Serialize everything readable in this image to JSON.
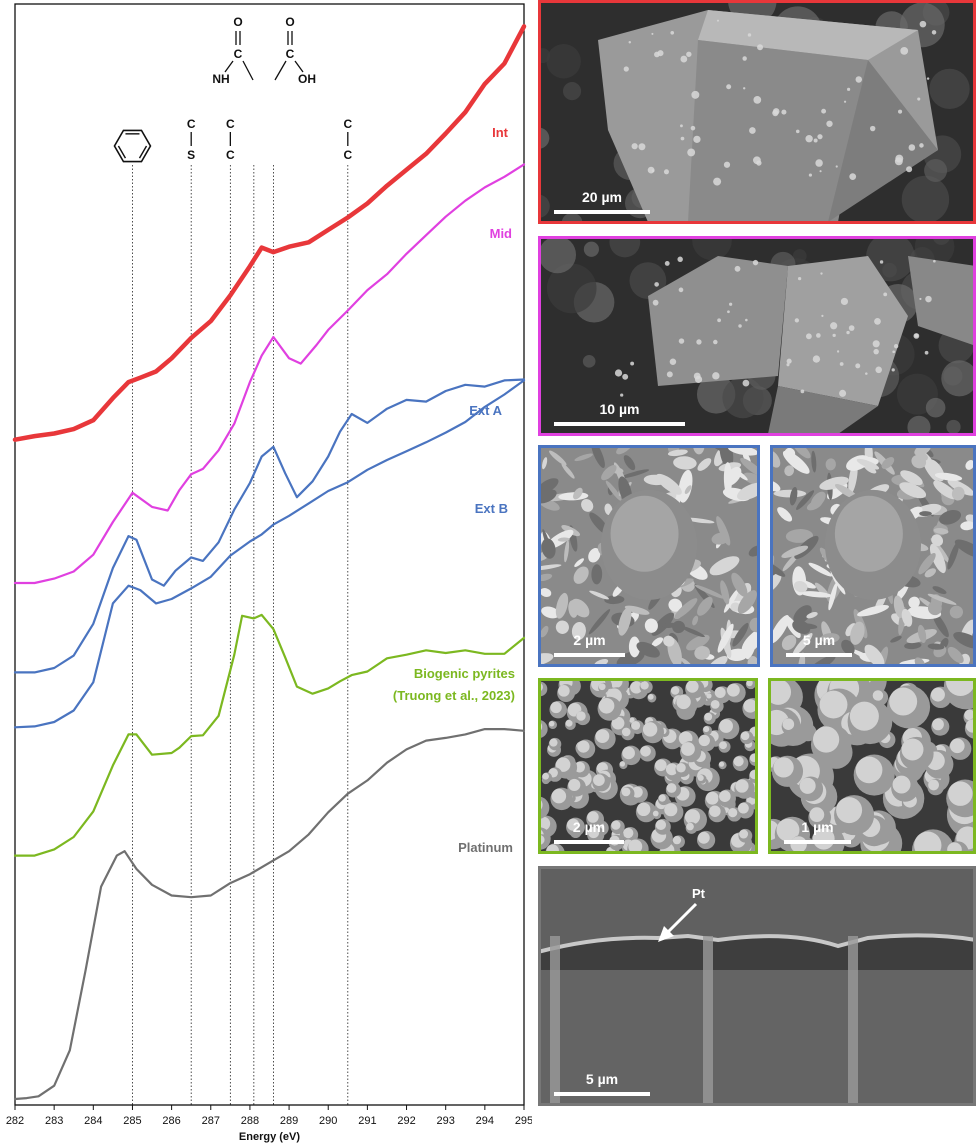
{
  "chart_data": {
    "type": "line",
    "xlabel": "Energy (eV)",
    "xlim": [
      282,
      295
    ],
    "x_ticks": [
      "282",
      "283",
      "284",
      "285",
      "286",
      "287",
      "288",
      "289",
      "290",
      "291",
      "292",
      "293",
      "294",
      "295"
    ],
    "ylabel": "",
    "grid": false,
    "reference_lines": [
      {
        "x": 285.0,
        "label": "aromatic ring"
      },
      {
        "x": 286.5,
        "label_lines": [
          "C",
          "S"
        ]
      },
      {
        "x": 287.5,
        "label_lines": [
          "C",
          "C"
        ]
      },
      {
        "x": 288.1,
        "label_lines": [
          "O",
          "C",
          "NH"
        ]
      },
      {
        "x": 288.6,
        "label_lines": [
          "O",
          "C",
          "OH"
        ]
      },
      {
        "x": 290.5,
        "label_lines": [
          "C",
          "C"
        ]
      }
    ],
    "series": [
      {
        "name": "Int",
        "label_lines": [
          "Int"
        ],
        "color": "#e8373a",
        "x": [
          282,
          282.5,
          283,
          283.5,
          284,
          284.5,
          284.9,
          285.2,
          285.6,
          286,
          286.5,
          287,
          287.5,
          288,
          288.3,
          288.6,
          289,
          289.5,
          290,
          290.5,
          291,
          291.5,
          292,
          292.5,
          293,
          293.5,
          294,
          294.5,
          295
        ],
        "y": [
          0.345,
          0.349,
          0.352,
          0.357,
          0.367,
          0.392,
          0.41,
          0.415,
          0.422,
          0.437,
          0.46,
          0.479,
          0.508,
          0.541,
          0.562,
          0.557,
          0.563,
          0.568,
          0.582,
          0.596,
          0.612,
          0.632,
          0.65,
          0.668,
          0.691,
          0.715,
          0.747,
          0.77,
          0.812
        ]
      },
      {
        "name": "Mid",
        "label_lines": [
          "Mid"
        ],
        "color": "#e040e0",
        "x": [
          282,
          282.5,
          283,
          283.5,
          284,
          284.5,
          285,
          285.5,
          285.9,
          286.2,
          286.5,
          286.8,
          287.2,
          287.6,
          288,
          288.3,
          288.6,
          289,
          289.3,
          289.7,
          290,
          290.5,
          291,
          291.5,
          292,
          292.5,
          293,
          293.5,
          294,
          294.5,
          295
        ],
        "y": [
          0.183,
          0.183,
          0.188,
          0.196,
          0.215,
          0.252,
          0.285,
          0.269,
          0.265,
          0.288,
          0.306,
          0.312,
          0.333,
          0.363,
          0.41,
          0.44,
          0.461,
          0.437,
          0.431,
          0.452,
          0.469,
          0.491,
          0.514,
          0.532,
          0.555,
          0.576,
          0.597,
          0.615,
          0.63,
          0.642,
          0.656
        ]
      },
      {
        "name": "Ext A",
        "label_lines": [
          "Ext A"
        ],
        "color": "#4a74c0",
        "x": [
          282,
          282.5,
          283,
          283.5,
          284,
          284.5,
          284.9,
          285.1,
          285.5,
          285.8,
          286.1,
          286.5,
          286.8,
          287.2,
          287.6,
          288,
          288.3,
          288.6,
          288.9,
          289.2,
          289.6,
          290,
          290.3,
          290.6,
          291,
          291.5,
          292,
          292.5,
          293,
          293.5,
          294,
          294.5,
          295
        ],
        "y": [
          0.082,
          0.082,
          0.087,
          0.101,
          0.137,
          0.2,
          0.236,
          0.232,
          0.187,
          0.18,
          0.197,
          0.212,
          0.208,
          0.229,
          0.266,
          0.296,
          0.326,
          0.337,
          0.307,
          0.28,
          0.298,
          0.326,
          0.354,
          0.374,
          0.364,
          0.38,
          0.39,
          0.388,
          0.4,
          0.407,
          0.405,
          0.412,
          0.413
        ]
      },
      {
        "name": "Ext B",
        "label_lines": [
          "Ext B"
        ],
        "color": "#4a74c0",
        "x": [
          282,
          282.5,
          283,
          283.5,
          284,
          284.5,
          284.9,
          285.2,
          285.6,
          286,
          286.5,
          287,
          287.5,
          288,
          288.3,
          288.6,
          289,
          289.5,
          290,
          290.5,
          291,
          291.5,
          292,
          292.5,
          293,
          293.5,
          294,
          294.5,
          295
        ],
        "y": [
          0.02,
          0.021,
          0.026,
          0.039,
          0.071,
          0.16,
          0.18,
          0.175,
          0.16,
          0.165,
          0.177,
          0.19,
          0.214,
          0.23,
          0.238,
          0.249,
          0.259,
          0.273,
          0.287,
          0.297,
          0.311,
          0.322,
          0.332,
          0.342,
          0.353,
          0.365,
          0.382,
          0.396,
          0.412
        ]
      },
      {
        "name": "Biogenic pyrites (Truong et al., 2023)",
        "label_lines": [
          "Biogenic pyrites",
          "(Truong et al., 2023)"
        ],
        "color": "#7cb820",
        "x": [
          282,
          282.5,
          283,
          283.5,
          284,
          284.5,
          284.9,
          285.1,
          285.5,
          286,
          286.2,
          286.5,
          286.8,
          287.2,
          287.6,
          287.8,
          288.1,
          288.3,
          288.6,
          288.9,
          289.2,
          289.6,
          290,
          290.3,
          290.6,
          291,
          291.5,
          292,
          292.5,
          293,
          293.5,
          294,
          294.5,
          295
        ],
        "y": [
          -0.125,
          -0.125,
          -0.118,
          -0.104,
          -0.075,
          -0.023,
          0.012,
          0.012,
          -0.011,
          -0.009,
          -0.003,
          0.01,
          0.011,
          0.033,
          0.102,
          0.146,
          0.143,
          0.147,
          0.131,
          0.099,
          0.066,
          0.058,
          0.064,
          0.072,
          0.079,
          0.083,
          0.098,
          0.102,
          0.107,
          0.104,
          0.107,
          0.103,
          0.103,
          0.121
        ]
      },
      {
        "name": "Platinum",
        "label_lines": [
          "Platinum"
        ],
        "color": "#707070",
        "x": [
          282,
          282.3,
          282.6,
          283,
          283.4,
          283.8,
          284.2,
          284.6,
          284.8,
          285.1,
          285.5,
          286,
          286.5,
          287,
          287.5,
          288,
          288.5,
          289,
          289.5,
          290,
          290.5,
          291,
          291.5,
          292,
          292.5,
          293,
          293.5,
          294,
          294.5,
          295
        ],
        "y": [
          -0.4,
          -0.399,
          -0.397,
          -0.385,
          -0.345,
          -0.255,
          -0.16,
          -0.125,
          -0.12,
          -0.14,
          -0.158,
          -0.17,
          -0.172,
          -0.17,
          -0.156,
          -0.146,
          -0.133,
          -0.12,
          -0.101,
          -0.076,
          -0.055,
          -0.04,
          -0.02,
          -0.005,
          0.005,
          0.008,
          0.012,
          0.018,
          0.018,
          0.016
        ]
      }
    ]
  },
  "sem_panels": [
    {
      "id": "int",
      "color": "#e8373a",
      "scale_label": "20 µm",
      "texture": "crystal"
    },
    {
      "id": "mid",
      "color": "#e040e0",
      "scale_label": "10 µm",
      "texture": "crystal"
    },
    {
      "id": "extA",
      "color": "#4a74c0",
      "scale_label": "2 µm",
      "texture": "flaky"
    },
    {
      "id": "extB",
      "color": "#4a74c0",
      "scale_label": "5 µm",
      "texture": "flaky"
    },
    {
      "id": "bio1",
      "color": "#7cb820",
      "scale_label": "2 µm",
      "texture": "spheres"
    },
    {
      "id": "bio2",
      "color": "#7cb820",
      "scale_label": "1 µm",
      "texture": "spheres"
    },
    {
      "id": "pt",
      "color": "#777777",
      "scale_label": "5 µm",
      "texture": "section",
      "arrow_label": "Pt"
    }
  ]
}
